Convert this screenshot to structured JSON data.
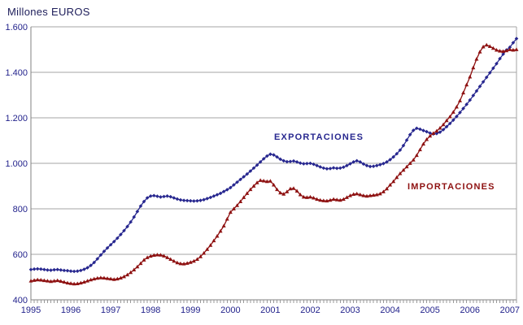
{
  "title": "Millones EUROS",
  "series_labels": {
    "export": "EXPORTACIONES",
    "import": "IMPORTACIONES"
  },
  "colors": {
    "export_line": "#27278F",
    "import_line": "#8E1111",
    "gridline": "#A6A6A6",
    "axis_line": "#808080",
    "tick_text": "#23238C",
    "title_text": "#20205C",
    "background": "#FFFFFF"
  },
  "chart_data": {
    "type": "line",
    "title": "Millones EUROS",
    "frequency": "monthly",
    "x_start_year": 1995,
    "x_tick_labels": [
      "1995",
      "1996",
      "1997",
      "1998",
      "1999",
      "2000",
      "2001",
      "2002",
      "2003",
      "2004",
      "2005",
      "2006",
      "2007"
    ],
    "y_tick_labels": [
      "400",
      "600",
      "800",
      "1.000",
      "1.200",
      "1.400",
      "1.600"
    ],
    "y_tick_values": [
      400,
      600,
      800,
      1000,
      1200,
      1400,
      1600
    ],
    "ylim": [
      400,
      1600
    ],
    "grid": "horizontal",
    "legend": "inline-annotations",
    "series": [
      {
        "name": "EXPORTACIONES",
        "color": "#27278F",
        "marker": "diamond",
        "values": [
          533,
          535,
          536,
          535,
          533,
          531,
          530,
          532,
          533,
          531,
          529,
          528,
          526,
          525,
          526,
          529,
          534,
          541,
          551,
          564,
          580,
          597,
          613,
          628,
          642,
          656,
          671,
          687,
          704,
          722,
          742,
          764,
          788,
          812,
          832,
          848,
          856,
          858,
          855,
          852,
          854,
          856,
          853,
          848,
          843,
          839,
          837,
          836,
          835,
          834,
          835,
          837,
          840,
          845,
          850,
          856,
          862,
          868,
          876,
          884,
          893,
          905,
          917,
          929,
          941,
          953,
          966,
          979,
          992,
          1006,
          1020,
          1032,
          1040,
          1037,
          1028,
          1018,
          1011,
          1007,
          1008,
          1010,
          1006,
          1001,
          998,
          999,
          1000,
          996,
          990,
          984,
          979,
          976,
          977,
          980,
          978,
          979,
          983,
          990,
          998,
          1006,
          1011,
          1006,
          997,
          990,
          986,
          987,
          990,
          994,
          999,
          1006,
          1016,
          1028,
          1042,
          1058,
          1078,
          1102,
          1126,
          1145,
          1154,
          1150,
          1144,
          1139,
          1133,
          1129,
          1131,
          1137,
          1148,
          1161,
          1175,
          1190,
          1206,
          1223,
          1241,
          1259,
          1278,
          1298,
          1318,
          1338,
          1358,
          1378,
          1398,
          1418,
          1438,
          1460,
          1480,
          1498,
          1510,
          1530,
          1548
        ]
      },
      {
        "name": "IMPORTACIONES",
        "color": "#8E1111",
        "marker": "triangle",
        "values": [
          483,
          486,
          488,
          487,
          485,
          483,
          481,
          483,
          485,
          482,
          478,
          474,
          472,
          470,
          471,
          474,
          478,
          483,
          488,
          492,
          495,
          497,
          496,
          494,
          492,
          490,
          492,
          496,
          502,
          510,
          520,
          532,
          545,
          560,
          575,
          586,
          592,
          596,
          598,
          597,
          593,
          586,
          578,
          570,
          563,
          559,
          558,
          561,
          565,
          570,
          578,
          590,
          605,
          622,
          640,
          660,
          680,
          702,
          725,
          755,
          785,
          800,
          815,
          832,
          850,
          868,
          885,
          900,
          915,
          925,
          923,
          920,
          922,
          905,
          885,
          870,
          865,
          875,
          888,
          890,
          878,
          862,
          852,
          850,
          852,
          848,
          842,
          838,
          836,
          835,
          838,
          842,
          840,
          838,
          842,
          850,
          858,
          864,
          866,
          862,
          858,
          856,
          858,
          860,
          862,
          866,
          875,
          888,
          905,
          920,
          938,
          955,
          970,
          985,
          1000,
          1015,
          1035,
          1060,
          1085,
          1105,
          1120,
          1132,
          1142,
          1155,
          1170,
          1188,
          1205,
          1225,
          1248,
          1275,
          1310,
          1345,
          1380,
          1420,
          1458,
          1490,
          1512,
          1520,
          1514,
          1506,
          1498,
          1494,
          1492,
          1495,
          1500,
          1498,
          1500
        ]
      }
    ]
  }
}
